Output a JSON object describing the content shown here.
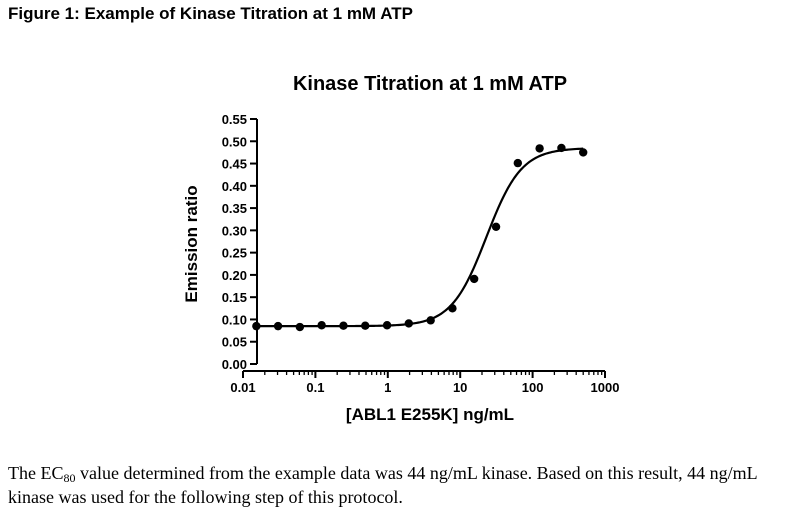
{
  "figure_title": "Figure 1: Example of Kinase Titration at 1 mM ATP",
  "chart_data": {
    "type": "scatter",
    "title": "Kinase Titration at 1 mM ATP",
    "xlabel": "[ABL1 E255K] ng/mL",
    "ylabel": "Emission ratio",
    "x_scale": "log",
    "xlim": [
      0.01,
      1000
    ],
    "ylim": [
      0,
      0.55
    ],
    "x_ticks": [
      0.01,
      0.1,
      1,
      10,
      100,
      1000
    ],
    "x_tick_labels": [
      "0.01",
      "0.1",
      "1",
      "10",
      "100",
      "1000"
    ],
    "y_ticks": [
      0.0,
      0.05,
      0.1,
      0.15,
      0.2,
      0.25,
      0.3,
      0.35,
      0.4,
      0.45,
      0.5,
      0.55
    ],
    "y_tick_labels": [
      "0.00",
      "0.05",
      "0.10",
      "0.15",
      "0.20",
      "0.25",
      "0.30",
      "0.35",
      "0.40",
      "0.45",
      "0.50",
      "0.55"
    ],
    "grid": false,
    "series": [
      {
        "x": [
          0.0153,
          0.0305,
          0.061,
          0.122,
          0.244,
          0.488,
          0.977,
          1.95,
          3.91,
          7.81,
          15.6,
          31.3,
          62.5,
          125,
          250,
          500
        ],
        "y": [
          0.085,
          0.085,
          0.083,
          0.087,
          0.086,
          0.086,
          0.087,
          0.091,
          0.098,
          0.125,
          0.191,
          0.308,
          0.451,
          0.484,
          0.485,
          0.475
        ]
      }
    ],
    "fit_curve": {
      "bottom": 0.085,
      "top": 0.485,
      "ec50": 23,
      "hill": 1.8
    },
    "colors": {
      "marker": "#000000",
      "line": "#000000"
    }
  },
  "caption": {
    "part1": "The EC",
    "sub": "80",
    "part2": " value determined from the example data was 44 ng/mL kinase.  Based on this result, 44 ng/mL kinase was used for the following step of this protocol."
  }
}
